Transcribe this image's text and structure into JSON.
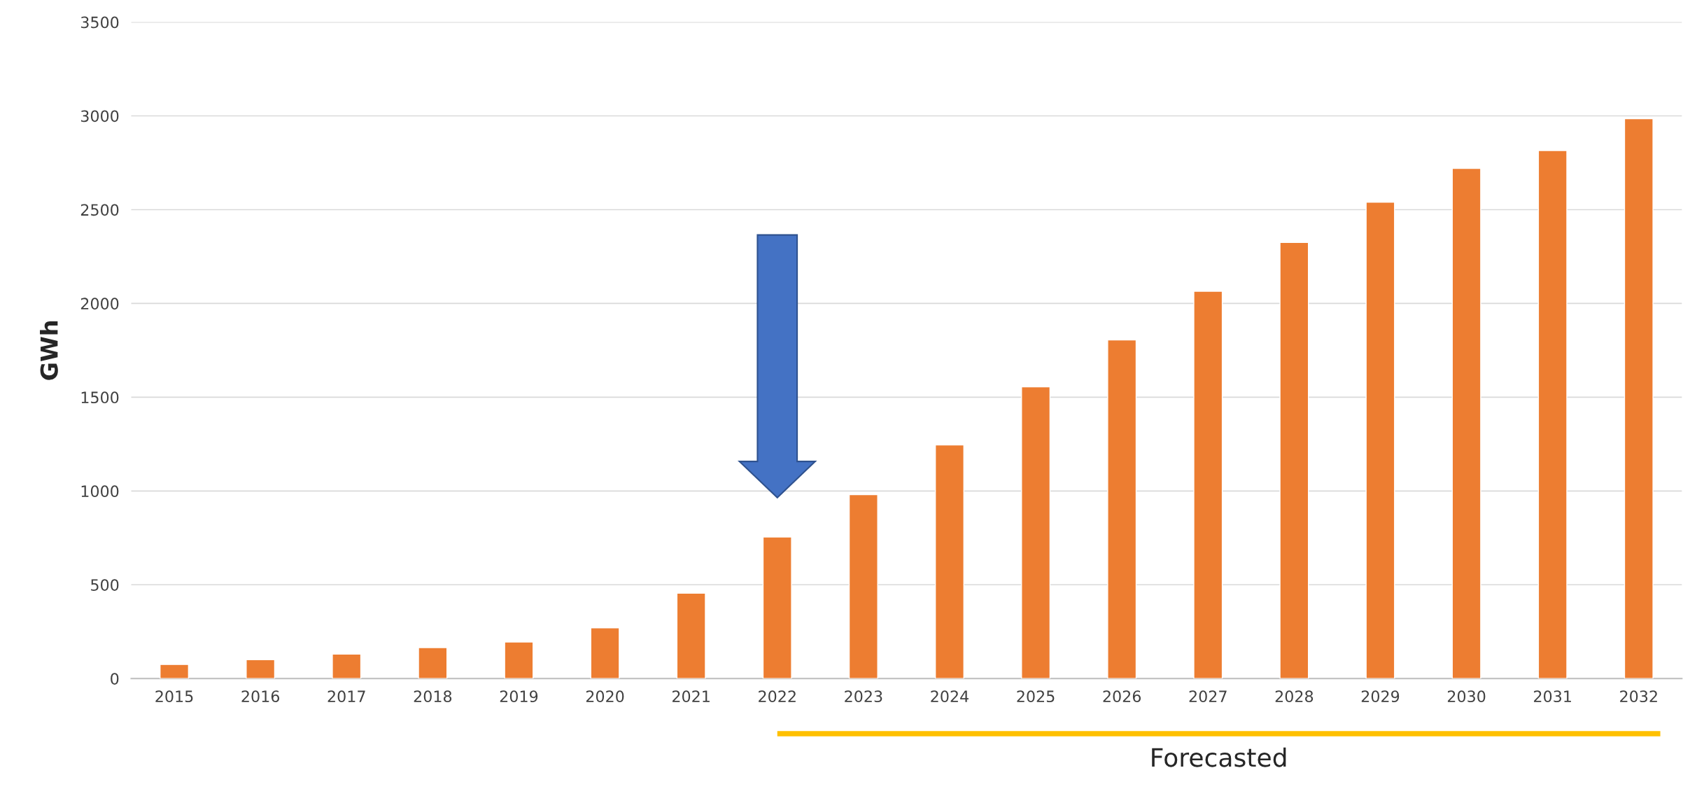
{
  "chart_data": {
    "type": "bar",
    "ylabel": "GWh",
    "categories": [
      "2015",
      "2016",
      "2017",
      "2018",
      "2019",
      "2020",
      "2021",
      "2022",
      "2023",
      "2024",
      "2025",
      "2026",
      "2027",
      "2028",
      "2029",
      "2030",
      "2031",
      "2032"
    ],
    "values": [
      75,
      100,
      130,
      165,
      195,
      270,
      455,
      755,
      980,
      1245,
      1555,
      1805,
      2065,
      2325,
      2540,
      2720,
      2815,
      2985
    ],
    "color": "#ed7d31",
    "ylim": [
      0,
      3500
    ],
    "yticks": [
      0,
      500,
      1000,
      1500,
      2000,
      2500,
      3000,
      3500
    ],
    "grid": "y",
    "annotations": [
      "Forecasted"
    ]
  }
}
